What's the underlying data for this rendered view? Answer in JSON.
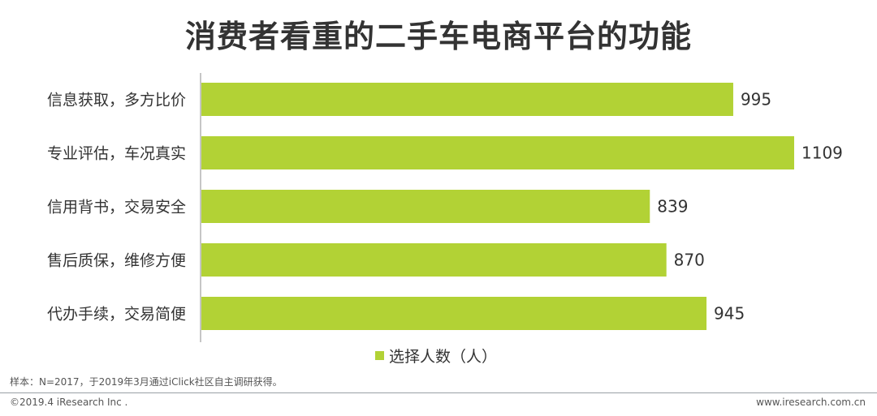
{
  "title": "消费者看重的二手车电商平台的功能",
  "chart_data": {
    "type": "bar",
    "orientation": "horizontal",
    "categories": [
      "信息获取，多方比价",
      "专业评估，车况真实",
      "信用背书，交易安全",
      "售后质保，维修方便",
      "代办手续，交易简便"
    ],
    "series": [
      {
        "name": "选择人数（人）",
        "values": [
          995,
          1109,
          839,
          870,
          945
        ]
      }
    ],
    "xlim": [
      0,
      1109
    ],
    "grid": false,
    "legend": "bottom",
    "color": "#b2d235"
  },
  "legend_label": "选择人数（人）",
  "note": "样本：N=2017，于2019年3月通过iClick社区自主调研获得。",
  "footer": {
    "left": "©2019.4 iResearch Inc .",
    "right": "www.iresearch.com.cn"
  }
}
